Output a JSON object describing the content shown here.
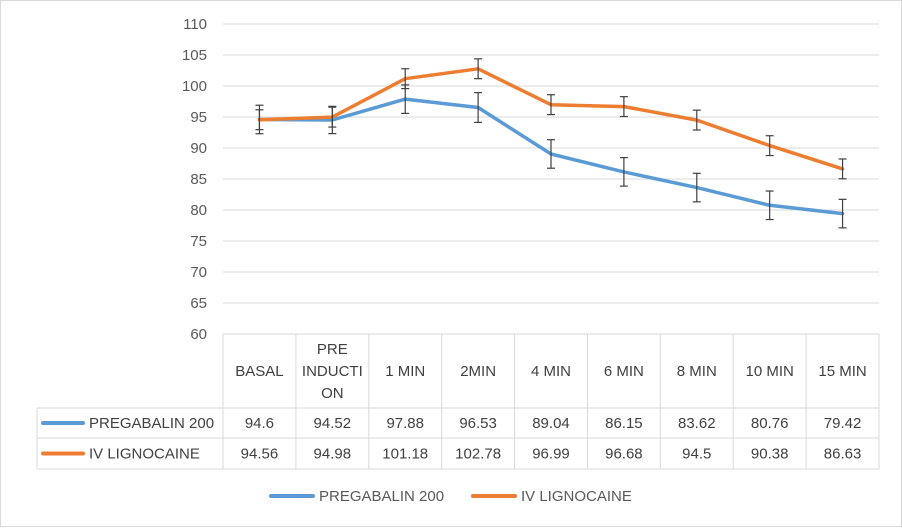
{
  "chart_data": {
    "type": "line",
    "title": "",
    "xlabel": "",
    "ylabel": "",
    "ylim": [
      60,
      110
    ],
    "ytick_step": 5,
    "grid": true,
    "legend_position": "bottom",
    "categories": [
      [
        "BASAL"
      ],
      [
        "PRE",
        "INDUCTI",
        "ON"
      ],
      [
        "1 MIN"
      ],
      [
        "2MIN"
      ],
      [
        "4 MIN"
      ],
      [
        "6 MIN"
      ],
      [
        "8 MIN"
      ],
      [
        "10 MIN"
      ],
      [
        "15 MIN"
      ]
    ],
    "series": [
      {
        "name": "PREGABALIN 200",
        "color": "#5b9bd5",
        "values": [
          94.6,
          94.52,
          97.88,
          96.53,
          89.04,
          86.15,
          83.62,
          80.76,
          79.42
        ],
        "labels": [
          "94.6",
          "94.52",
          "97.88",
          "96.53",
          "89.04",
          "86.15",
          "83.62",
          "80.76",
          "79.42"
        ],
        "error": [
          2.3,
          2.2,
          2.3,
          2.4,
          2.3,
          2.3,
          2.3,
          2.3,
          2.3
        ]
      },
      {
        "name": "IV LIGNOCAINE",
        "color": "#ed7d31",
        "values": [
          94.56,
          94.98,
          101.18,
          102.78,
          96.99,
          96.68,
          94.5,
          90.38,
          86.63
        ],
        "labels": [
          "94.56",
          "94.98",
          "101.18",
          "102.78",
          "96.99",
          "96.68",
          "94.5",
          "90.38",
          "86.63"
        ],
        "error": [
          1.6,
          1.6,
          1.6,
          1.6,
          1.6,
          1.6,
          1.6,
          1.6,
          1.6
        ]
      }
    ]
  }
}
